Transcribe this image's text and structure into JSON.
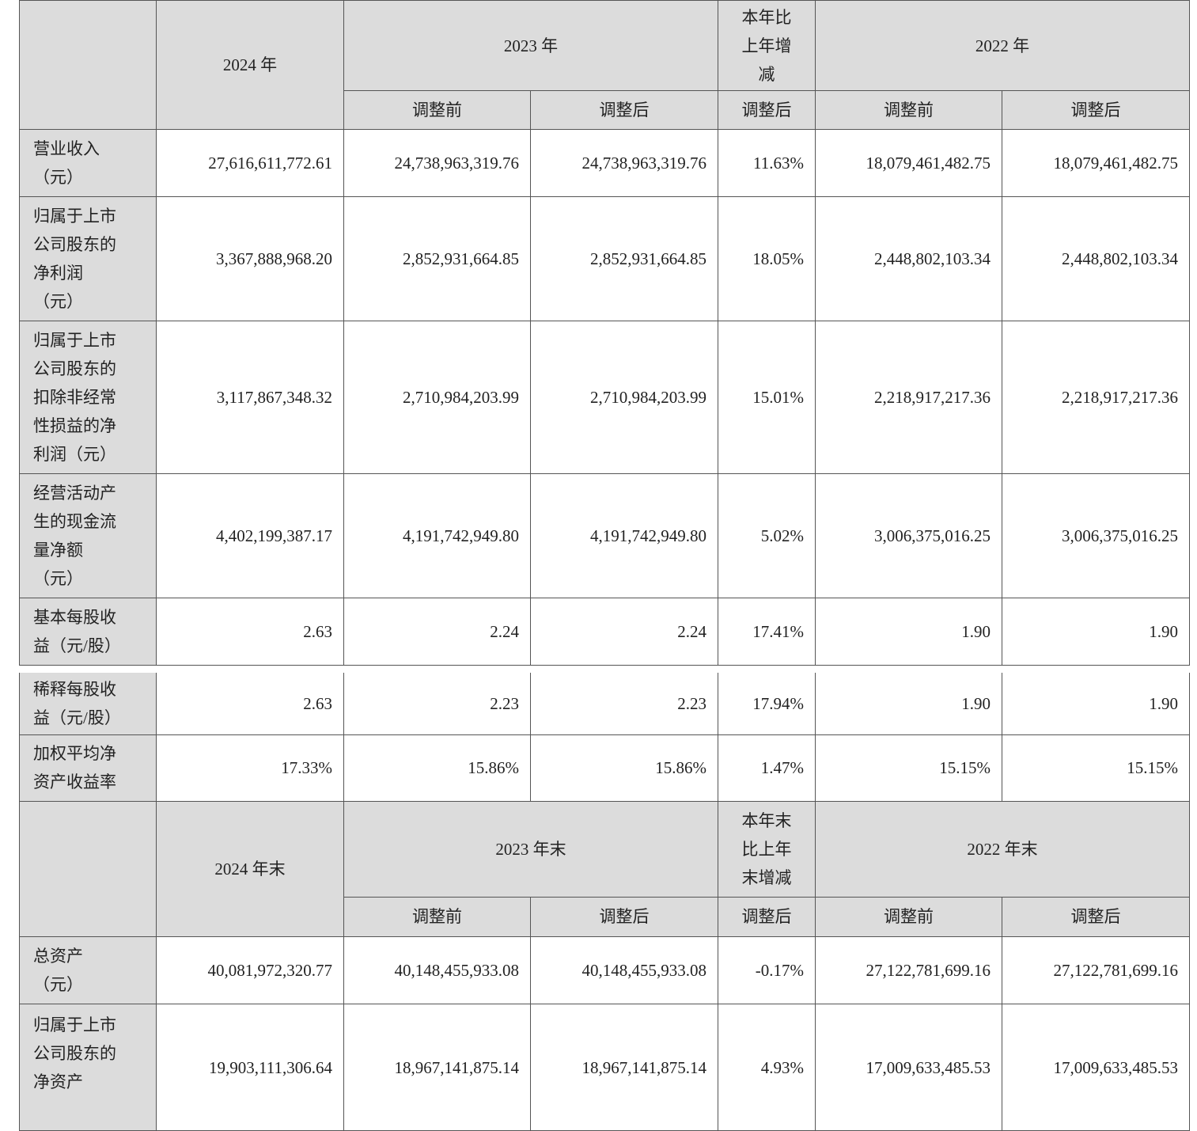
{
  "section1": {
    "header": {
      "y2024": "2024 年",
      "y2023": "2023 年",
      "change": "本年比\n上年增\n减",
      "y2022": "2022 年",
      "before": "调整前",
      "after": "调整后",
      "change_after": "调整后"
    },
    "rows": [
      {
        "label": "营业收入\n（元）",
        "v": [
          "27,616,611,772.61",
          "24,738,963,319.76",
          "24,738,963,319.76",
          "11.63%",
          "18,079,461,482.75",
          "18,079,461,482.75"
        ]
      },
      {
        "label": "归属于上市\n公司股东的\n净利润\n（元）",
        "v": [
          "3,367,888,968.20",
          "2,852,931,664.85",
          "2,852,931,664.85",
          "18.05%",
          "2,448,802,103.34",
          "2,448,802,103.34"
        ]
      },
      {
        "label": "归属于上市\n公司股东的\n扣除非经常\n性损益的净\n利润（元）",
        "v": [
          "3,117,867,348.32",
          "2,710,984,203.99",
          "2,710,984,203.99",
          "15.01%",
          "2,218,917,217.36",
          "2,218,917,217.36"
        ]
      },
      {
        "label": "经营活动产\n生的现金流\n量净额\n（元）",
        "v": [
          "4,402,199,387.17",
          "4,191,742,949.80",
          "4,191,742,949.80",
          "5.02%",
          "3,006,375,016.25",
          "3,006,375,016.25"
        ]
      },
      {
        "label": "基本每股收\n益（元/股）",
        "v": [
          "2.63",
          "2.24",
          "2.24",
          "17.41%",
          "1.90",
          "1.90"
        ]
      },
      {
        "label": "稀释每股收\n益（元/股）",
        "v": [
          "2.63",
          "2.23",
          "2.23",
          "17.94%",
          "1.90",
          "1.90"
        ]
      },
      {
        "label": "加权平均净\n资产收益率",
        "v": [
          "17.33%",
          "15.86%",
          "15.86%",
          "1.47%",
          "15.15%",
          "15.15%"
        ]
      }
    ]
  },
  "section2": {
    "header": {
      "y2024": "2024 年末",
      "y2023": "2023 年末",
      "change": "本年末\n比上年\n末增减",
      "y2022": "2022 年末",
      "before": "调整前",
      "after": "调整后",
      "change_after": "调整后"
    },
    "rows": [
      {
        "label": "总资产\n（元）",
        "v": [
          "40,081,972,320.77",
          "40,148,455,933.08",
          "40,148,455,933.08",
          "-0.17%",
          "27,122,781,699.16",
          "27,122,781,699.16"
        ]
      },
      {
        "label": "归属于上市\n公司股东的\n净资产",
        "v": [
          "19,903,111,306.64",
          "18,967,141,875.14",
          "18,967,141,875.14",
          "4.93%",
          "17,009,633,485.53",
          "17,009,633,485.53"
        ]
      }
    ]
  },
  "colors": {
    "header_bg": "#dcdcdc",
    "border": "#555555"
  }
}
